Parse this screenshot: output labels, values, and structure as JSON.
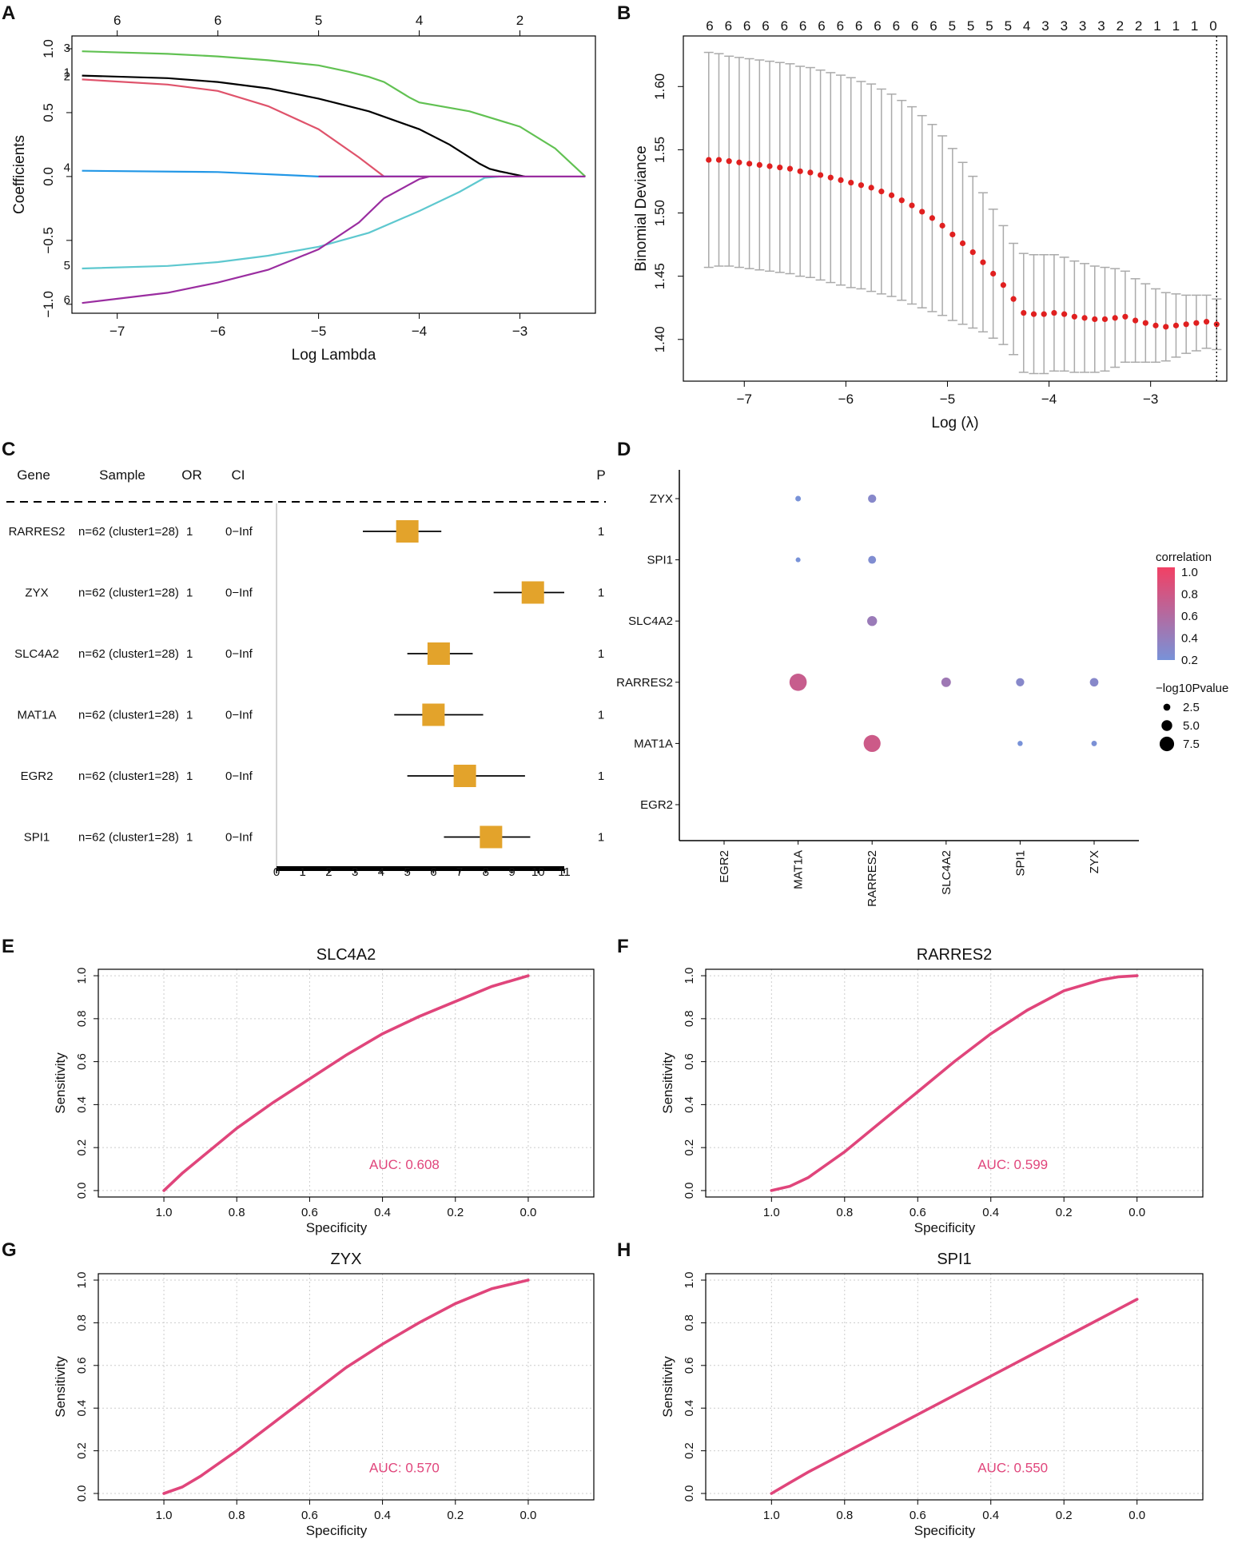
{
  "chart_data": [
    {
      "panel": "A",
      "type": "line",
      "xlabel": "Log Lambda",
      "ylabel": "Coefficients",
      "xlim": [
        -7.45,
        -2.25
      ],
      "ylim": [
        -1.07,
        1.1
      ],
      "xticks": [
        -7,
        -6,
        -5,
        -4,
        -3
      ],
      "xtick_labels": [
        "−7",
        "−6",
        "−5",
        "−4",
        "−3"
      ],
      "yticks": [
        -1.0,
        -0.5,
        0.0,
        0.5,
        1.0
      ],
      "ytick_labels": [
        "−1.0",
        "−0.5",
        "0.0",
        "0.5",
        "1.0"
      ],
      "top_ticks": [
        -7,
        -6,
        -5,
        -4,
        -3
      ],
      "top_labels": [
        "6",
        "6",
        "5",
        "4",
        "2"
      ],
      "series": [
        {
          "name": "3",
          "color": "#61c152",
          "x": [
            -7.35,
            -6.5,
            -6.0,
            -5.5,
            -5.0,
            -4.7,
            -4.5,
            -4.35,
            -4.1,
            -4.0,
            -3.5,
            -3.0,
            -2.65,
            -2.35
          ],
          "y": [
            0.98,
            0.96,
            0.94,
            0.91,
            0.87,
            0.82,
            0.78,
            0.74,
            0.62,
            0.58,
            0.51,
            0.39,
            0.22,
            0.0
          ]
        },
        {
          "name": "1",
          "color": "#000000",
          "x": [
            -7.35,
            -6.5,
            -6.0,
            -5.5,
            -5.0,
            -4.5,
            -4.0,
            -3.7,
            -3.4,
            -3.3,
            -3.2,
            -2.95
          ],
          "y": [
            0.79,
            0.77,
            0.74,
            0.69,
            0.61,
            0.51,
            0.37,
            0.25,
            0.1,
            0.06,
            0.04,
            0.0
          ]
        },
        {
          "name": "2",
          "color": "#df536b",
          "x": [
            -7.35,
            -6.5,
            -6.0,
            -5.5,
            -5.0,
            -4.6,
            -4.35
          ],
          "y": [
            0.76,
            0.72,
            0.67,
            0.55,
            0.37,
            0.15,
            0.0
          ]
        },
        {
          "name": "4",
          "color": "#2297e6",
          "x": [
            -7.35,
            -6.0,
            -5.0,
            -4.0
          ],
          "y": [
            0.045,
            0.035,
            0.0,
            0.0
          ]
        },
        {
          "name": "5",
          "color": "#5ec8cf",
          "x": [
            -7.35,
            -6.5,
            -6.0,
            -5.5,
            -5.0,
            -4.5,
            -4.0,
            -3.6,
            -3.35,
            -3.2
          ],
          "y": [
            -0.72,
            -0.7,
            -0.67,
            -0.62,
            -0.55,
            -0.44,
            -0.27,
            -0.12,
            -0.01,
            0.0
          ]
        },
        {
          "name": "6",
          "color": "#9a2da0",
          "x": [
            -7.35,
            -6.5,
            -6.0,
            -5.5,
            -5.0,
            -4.6,
            -4.35,
            -4.0,
            -3.9
          ],
          "y": [
            -0.99,
            -0.91,
            -0.83,
            -0.73,
            -0.57,
            -0.36,
            -0.17,
            -0.02,
            0.0
          ]
        }
      ],
      "zero_segment": {
        "x": [
          -5.0,
          -2.35
        ],
        "y": [
          0.0,
          0.0
        ]
      }
    },
    {
      "panel": "B",
      "type": "scatter",
      "xlabel": "Log (λ)",
      "ylabel": "Binomial Deviance",
      "xlim": [
        -7.6,
        -2.25
      ],
      "ylim": [
        1.367,
        1.64
      ],
      "xticks": [
        -7,
        -6,
        -5,
        -4,
        -3
      ],
      "xtick_labels": [
        "−7",
        "−6",
        "−5",
        "−4",
        "−3"
      ],
      "yticks": [
        1.4,
        1.45,
        1.5,
        1.55,
        1.6
      ],
      "ytick_labels": [
        "1.40",
        "1.45",
        "1.50",
        "1.55",
        "1.60"
      ],
      "x_start": -7.35,
      "x_step": 0.1,
      "mean": [
        1.542,
        1.542,
        1.541,
        1.54,
        1.539,
        1.538,
        1.537,
        1.536,
        1.535,
        1.533,
        1.532,
        1.53,
        1.528,
        1.526,
        1.524,
        1.522,
        1.52,
        1.517,
        1.514,
        1.51,
        1.506,
        1.501,
        1.496,
        1.49,
        1.483,
        1.476,
        1.469,
        1.461,
        1.452,
        1.443,
        1.432,
        1.421,
        1.42,
        1.42,
        1.421,
        1.42,
        1.418,
        1.417,
        1.416,
        1.416,
        1.417,
        1.418,
        1.415,
        1.413,
        1.411,
        1.41,
        1.411,
        1.412,
        1.413,
        1.414,
        1.412
      ],
      "se": [
        0.085,
        0.084,
        0.083,
        0.083,
        0.083,
        0.083,
        0.083,
        0.083,
        0.083,
        0.083,
        0.083,
        0.083,
        0.083,
        0.083,
        0.083,
        0.082,
        0.082,
        0.081,
        0.08,
        0.079,
        0.078,
        0.076,
        0.074,
        0.071,
        0.068,
        0.064,
        0.06,
        0.055,
        0.051,
        0.047,
        0.044,
        0.047,
        0.047,
        0.047,
        0.046,
        0.045,
        0.044,
        0.043,
        0.042,
        0.041,
        0.039,
        0.036,
        0.033,
        0.031,
        0.029,
        0.027,
        0.025,
        0.023,
        0.022,
        0.021,
        0.02
      ],
      "top_labels": [
        "6",
        "6",
        "6",
        "6",
        "6",
        "6",
        "6",
        "6",
        "6",
        "6",
        "6",
        "6",
        "6",
        "5",
        "5",
        "5",
        "5",
        "4",
        "3",
        "3",
        "3",
        "3",
        "2",
        "2",
        "1",
        "1",
        "1",
        "0"
      ],
      "vline": -2.35
    },
    {
      "panel": "C",
      "type": "table",
      "headers": [
        "Gene",
        "Sample",
        "OR",
        "CI",
        "P"
      ],
      "rows": [
        {
          "gene": "RARRES2",
          "sample": "n=62 (cluster1=28)",
          "or": "1",
          "ci": "0−Inf",
          "p": "1",
          "est": 5.0,
          "low": 3.3,
          "high": 6.3
        },
        {
          "gene": "ZYX",
          "sample": "n=62 (cluster1=28)",
          "or": "1",
          "ci": "0−Inf",
          "p": "1",
          "est": 9.8,
          "low": 8.3,
          "high": 11.0
        },
        {
          "gene": "SLC4A2",
          "sample": "n=62 (cluster1=28)",
          "or": "1",
          "ci": "0−Inf",
          "p": "1",
          "est": 6.2,
          "low": 5.0,
          "high": 7.5
        },
        {
          "gene": "MAT1A",
          "sample": "n=62 (cluster1=28)",
          "or": "1",
          "ci": "0−Inf",
          "p": "1",
          "est": 6.0,
          "low": 4.5,
          "high": 7.9
        },
        {
          "gene": "EGR2",
          "sample": "n=62 (cluster1=28)",
          "or": "1",
          "ci": "0−Inf",
          "p": "1",
          "est": 7.2,
          "low": 5.0,
          "high": 9.5
        },
        {
          "gene": "SPI1",
          "sample": "n=62 (cluster1=28)",
          "or": "1",
          "ci": "0−Inf",
          "p": "1",
          "est": 8.2,
          "low": 6.4,
          "high": 9.7
        }
      ],
      "xticks": [
        0,
        1,
        2,
        3,
        4,
        5,
        6,
        7,
        8,
        9,
        10,
        11
      ],
      "xlim": [
        0,
        11
      ]
    },
    {
      "panel": "D",
      "type": "scatter",
      "x_categories": [
        "EGR2",
        "MAT1A",
        "RARRES2",
        "SLC4A2",
        "SPI1",
        "ZYX"
      ],
      "y_categories": [
        "EGR2",
        "MAT1A",
        "RARRES2",
        "SLC4A2",
        "SPI1",
        "ZYX"
      ],
      "points": [
        {
          "x": "MAT1A",
          "y": "ZYX",
          "corr": 0.2,
          "logp": 1.2
        },
        {
          "x": "RARRES2",
          "y": "ZYX",
          "corr": 0.3,
          "logp": 2.8
        },
        {
          "x": "MAT1A",
          "y": "SPI1",
          "corr": 0.2,
          "logp": 0.8
        },
        {
          "x": "RARRES2",
          "y": "SPI1",
          "corr": 0.25,
          "logp": 2.6
        },
        {
          "x": "RARRES2",
          "y": "SLC4A2",
          "corr": 0.42,
          "logp": 3.8
        },
        {
          "x": "MAT1A",
          "y": "RARRES2",
          "corr": 0.72,
          "logp": 8.2
        },
        {
          "x": "SLC4A2",
          "y": "RARRES2",
          "corr": 0.45,
          "logp": 3.6
        },
        {
          "x": "SPI1",
          "y": "RARRES2",
          "corr": 0.3,
          "logp": 2.8
        },
        {
          "x": "ZYX",
          "y": "RARRES2",
          "corr": 0.3,
          "logp": 3.0
        },
        {
          "x": "RARRES2",
          "y": "MAT1A",
          "corr": 0.75,
          "logp": 8.0
        },
        {
          "x": "SPI1",
          "y": "MAT1A",
          "corr": 0.2,
          "logp": 1.0
        },
        {
          "x": "ZYX",
          "y": "MAT1A",
          "corr": 0.22,
          "logp": 1.2
        }
      ],
      "legend": {
        "color_title": "correlation",
        "color_ticks": [
          "1.0",
          "0.8",
          "0.6",
          "0.4",
          "0.2"
        ],
        "size_title": "−log10Pvalue",
        "size_ticks": [
          "2.5",
          "5.0",
          "7.5"
        ],
        "size_values": [
          2.5,
          5.0,
          7.5
        ]
      }
    },
    {
      "panel": "E",
      "type": "line",
      "title": "SLC4A2",
      "auc": "AUC: 0.608",
      "xlabel": "Specificity",
      "ylabel": "Sensitivity",
      "xticks": [
        "1.0",
        "0.8",
        "0.6",
        "0.4",
        "0.2",
        "0.0"
      ],
      "yticks": [
        "0.0",
        "0.2",
        "0.4",
        "0.6",
        "0.8",
        "1.0"
      ],
      "xlim": [
        1.18,
        -0.18
      ],
      "ylim": [
        -0.03,
        1.03
      ],
      "specificity": [
        1.0,
        0.95,
        0.9,
        0.8,
        0.7,
        0.6,
        0.5,
        0.4,
        0.3,
        0.2,
        0.1,
        0.0
      ],
      "sensitivity": [
        0.0,
        0.08,
        0.15,
        0.29,
        0.41,
        0.52,
        0.63,
        0.73,
        0.81,
        0.88,
        0.95,
        1.0
      ]
    },
    {
      "panel": "F",
      "type": "line",
      "title": "RARRES2",
      "auc": "AUC: 0.599",
      "xlabel": "Specificity",
      "ylabel": "Sensitivity",
      "xticks": [
        "1.0",
        "0.8",
        "0.6",
        "0.4",
        "0.2",
        "0.0"
      ],
      "yticks": [
        "0.0",
        "0.2",
        "0.4",
        "0.6",
        "0.8",
        "1.0"
      ],
      "xlim": [
        1.18,
        -0.18
      ],
      "ylim": [
        -0.03,
        1.03
      ],
      "specificity": [
        1.0,
        0.95,
        0.9,
        0.8,
        0.7,
        0.6,
        0.5,
        0.4,
        0.3,
        0.2,
        0.1,
        0.05,
        0.0
      ],
      "sensitivity": [
        0.0,
        0.02,
        0.06,
        0.18,
        0.32,
        0.46,
        0.6,
        0.73,
        0.84,
        0.93,
        0.98,
        0.995,
        1.0
      ]
    },
    {
      "panel": "G",
      "type": "line",
      "title": "ZYX",
      "auc": "AUC: 0.570",
      "xlabel": "Specificity",
      "ylabel": "Sensitivity",
      "xticks": [
        "1.0",
        "0.8",
        "0.6",
        "0.4",
        "0.2",
        "0.0"
      ],
      "yticks": [
        "0.0",
        "0.2",
        "0.4",
        "0.6",
        "0.8",
        "1.0"
      ],
      "xlim": [
        1.18,
        -0.18
      ],
      "ylim": [
        -0.03,
        1.03
      ],
      "specificity": [
        1.0,
        0.95,
        0.9,
        0.8,
        0.7,
        0.6,
        0.5,
        0.4,
        0.3,
        0.2,
        0.1,
        0.0
      ],
      "sensitivity": [
        0.0,
        0.03,
        0.08,
        0.2,
        0.33,
        0.46,
        0.59,
        0.7,
        0.8,
        0.89,
        0.96,
        1.0
      ]
    },
    {
      "panel": "H",
      "type": "line",
      "title": "SPI1",
      "auc": "AUC: 0.550",
      "xlabel": "Specificity",
      "ylabel": "Sensitivity",
      "xticks": [
        "1.0",
        "0.8",
        "0.6",
        "0.4",
        "0.2",
        "0.0"
      ],
      "yticks": [
        "0.0",
        "0.2",
        "0.4",
        "0.6",
        "0.8",
        "1.0"
      ],
      "xlim": [
        1.18,
        -0.18
      ],
      "ylim": [
        -0.03,
        1.03
      ],
      "specificity": [
        1.0,
        0.95,
        0.9,
        0.8,
        0.7,
        0.6,
        0.5,
        0.4,
        0.3,
        0.2,
        0.1,
        0.0
      ],
      "sensitivity": [
        0.0,
        0.05,
        0.1,
        0.19,
        0.28,
        0.37,
        0.46,
        0.55,
        0.64,
        0.73,
        0.82,
        0.91
      ]
    }
  ],
  "colors": {
    "roc": "#e0457b",
    "dev_point": "#e02020",
    "error_bar": "#aaaaaa",
    "forest_box": "#e3a32b",
    "grid": "#cccccc"
  },
  "labels": {
    "A": "A",
    "B": "B",
    "C": "C",
    "D": "D",
    "E": "E",
    "F": "F",
    "G": "G",
    "H": "H"
  }
}
